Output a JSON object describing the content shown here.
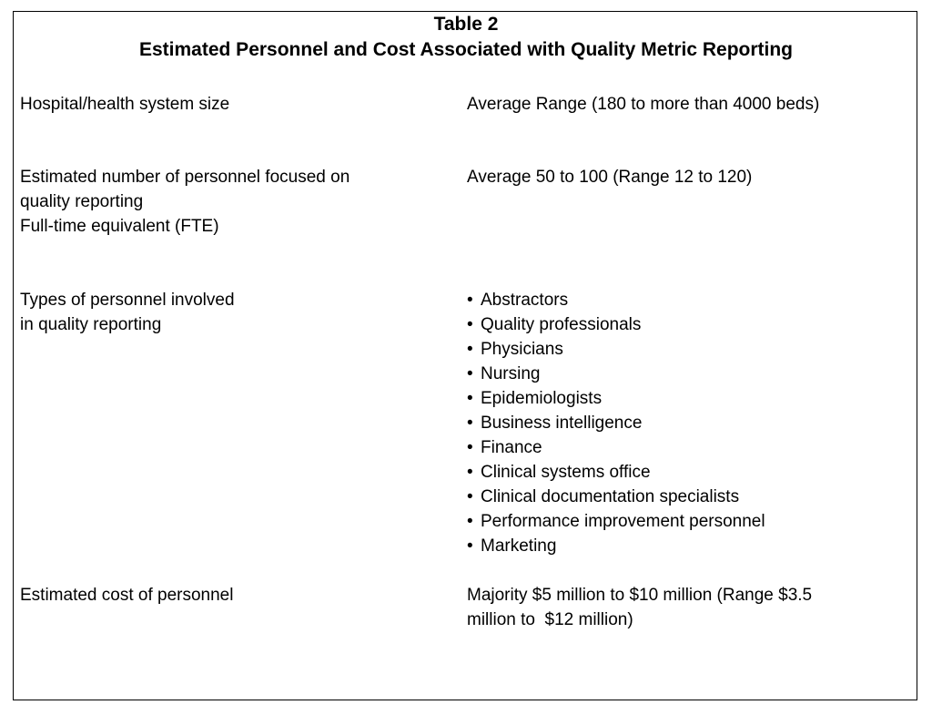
{
  "title": {
    "line1": "Table 2",
    "line2": "Estimated Personnel and Cost Associated with Quality Metric Reporting"
  },
  "rows": [
    {
      "label_lines": [
        "Hospital/health system size"
      ],
      "value_lines": [
        "Average Range (180 to more than 4000 beds)"
      ]
    },
    {
      "label_lines": [
        "Estimated number of personnel focused on",
        "quality reporting",
        "Full-time equivalent (FTE)"
      ],
      "value_lines": [
        "Average 50 to 100 (Range 12 to 120)"
      ]
    },
    {
      "label_lines": [
        "Types of personnel involved",
        "in quality reporting"
      ],
      "bullet_char": "•",
      "bullets": [
        "Abstractors",
        "Quality professionals",
        "Physicians",
        "Nursing",
        "Epidemiologists",
        "Business intelligence",
        "Finance",
        "Clinical systems office",
        "Clinical documentation specialists",
        "Performance improvement personnel",
        "Marketing"
      ]
    },
    {
      "label_lines": [
        "Estimated cost of personnel"
      ],
      "value_lines": [
        "Majority $5 million to $10 million (Range $3.5",
        "million to  $12 million)"
      ]
    }
  ]
}
